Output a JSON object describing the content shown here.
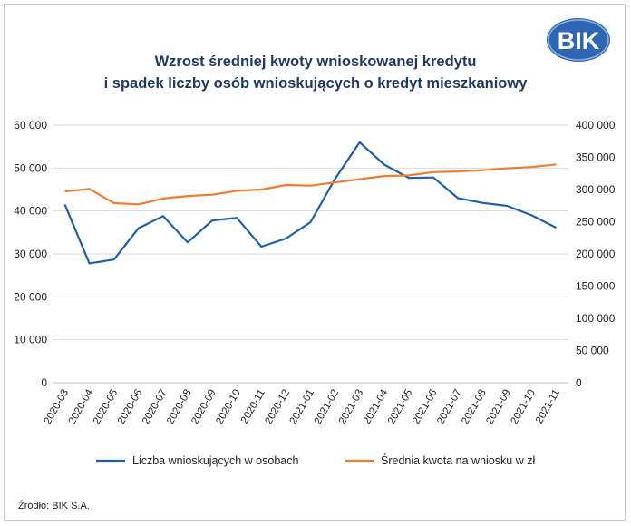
{
  "title": {
    "line1": "Wzrost średniej kwoty wnioskowanej kredytu",
    "line2": "i spadek liczby osób wnioskujących o kredyt mieszkaniowy"
  },
  "logo": {
    "text": "BIK"
  },
  "source": "Źródło: BIK S.A.",
  "colors": {
    "series1": "#1f5fa8",
    "series2": "#ed7d31",
    "title": "#1f3864",
    "logo": "#2f66b3"
  },
  "chart_data": {
    "type": "line",
    "categories": [
      "2020-03",
      "2020-04",
      "2020-05",
      "2020-06",
      "2020-07",
      "2020-08",
      "2020-09",
      "2020-10",
      "2020-11",
      "2020-12",
      "2021-01",
      "2021-02",
      "2021-03",
      "2021-04",
      "2021-05",
      "2021-06",
      "2021-07",
      "2021-08",
      "2021-09",
      "2021-10",
      "2021-11"
    ],
    "y_left": {
      "min": 0,
      "max": 60000,
      "ticks": [
        0,
        10000,
        20000,
        30000,
        40000,
        50000,
        60000
      ],
      "tick_labels": [
        "0",
        "10 000",
        "20 000",
        "30 000",
        "40 000",
        "50 000",
        "60 000"
      ]
    },
    "y_right": {
      "min": 0,
      "max": 400000,
      "ticks": [
        0,
        50000,
        100000,
        150000,
        200000,
        250000,
        300000,
        350000,
        400000
      ],
      "tick_labels": [
        "0",
        "50 000",
        "100 000",
        "150 000",
        "200 000",
        "250 000",
        "300 000",
        "350 000",
        "400 000"
      ]
    },
    "series": [
      {
        "name": "Liczba wnioskujących w osobach",
        "axis": "left",
        "values": [
          41500,
          27800,
          28700,
          36000,
          38800,
          32700,
          37800,
          38400,
          31700,
          33600,
          37400,
          47500,
          56000,
          50800,
          47700,
          47800,
          43000,
          41900,
          41200,
          39000,
          36100
        ]
      },
      {
        "name": "Średnia kwota na wniosku w zł",
        "axis": "right",
        "values": [
          297000,
          301000,
          279000,
          277000,
          286000,
          290000,
          292000,
          298000,
          300000,
          307000,
          306000,
          311000,
          316000,
          321000,
          322000,
          327000,
          328000,
          330000,
          333000,
          335000,
          339000
        ]
      }
    ],
    "grid": true,
    "legend_position": "bottom"
  }
}
